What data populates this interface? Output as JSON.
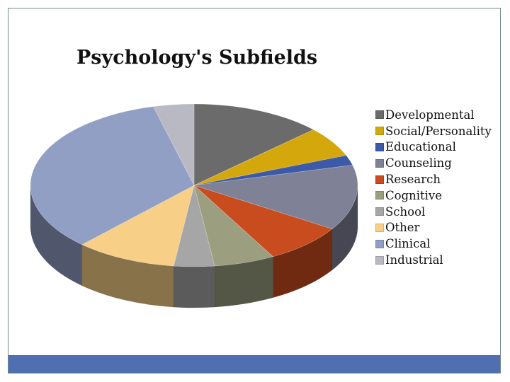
{
  "chart_data": {
    "type": "pie",
    "title": "Psychology's Subfields",
    "three_d": true,
    "start_angle_deg": -90,
    "direction": "clockwise",
    "legend_position": "right",
    "categories": [
      "Developmental",
      "Social/Personality",
      "Educational",
      "Counseling",
      "Research",
      "Cognitive",
      "School",
      "Other",
      "Clinical",
      "Industrial"
    ],
    "values": [
      13,
      6,
      2,
      13,
      8,
      6,
      4,
      10,
      34,
      4
    ],
    "colors": [
      "#6b6b6b",
      "#d4a80c",
      "#3d5aa8",
      "#7f8196",
      "#c94c1f",
      "#9b9e7f",
      "#a6a6a6",
      "#f7cf86",
      "#929fc4",
      "#b9b9c4"
    ]
  }
}
